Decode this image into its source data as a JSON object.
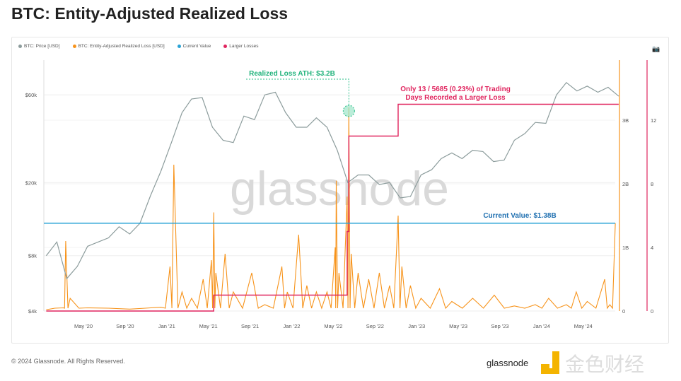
{
  "title": "BTC: Entity-Adjusted Realized Loss",
  "footer": "© 2024 Glassnode. All Rights Reserved.",
  "watermark": "glassnode",
  "logo_text": "金色财经",
  "camera_icon": "camera-icon",
  "colors": {
    "price": "#8c9c9c",
    "loss": "#f7931a",
    "current": "#2aa3d6",
    "larger": "#e0245e"
  },
  "chart_data": {
    "type": "line",
    "title": "BTC: Entity-Adjusted Realized Loss",
    "legend": [
      "BTC: Price [USD]",
      "BTC: Entity-Adjusted Realized Loss [USD]",
      "Current Value",
      "Larger Losses"
    ],
    "legend_placement": "top-left",
    "x_ticks": [
      "May '20",
      "Sep '20",
      "Jan '21",
      "May '21",
      "Sep '21",
      "Jan '22",
      "May '22",
      "Sep '22",
      "Jan '23",
      "May '23",
      "Sep '23",
      "Jan '24",
      "May '24"
    ],
    "y_left": {
      "scale": "log",
      "ticks": [
        "$4k",
        "$8k",
        "$20k",
        "$60k"
      ],
      "tick_values": [
        4000,
        8000,
        20000,
        60000
      ]
    },
    "y_right_loss": {
      "ticks": [
        "0",
        "1B",
        "2B",
        "3B"
      ],
      "tick_values": [
        0,
        1,
        2,
        3
      ],
      "unit": "billion USD"
    },
    "y_right_count": {
      "ticks": [
        "0",
        "4",
        "8",
        "12"
      ],
      "tick_values": [
        0,
        4,
        8,
        12
      ]
    },
    "x_range": [
      "2020-01",
      "2024-08"
    ],
    "price": [
      [
        "2020-01",
        8000
      ],
      [
        "2020-02",
        9500
      ],
      [
        "2020-03",
        6000
      ],
      [
        "2020-04",
        7000
      ],
      [
        "2020-05",
        9000
      ],
      [
        "2020-06",
        9500
      ],
      [
        "2020-07",
        10000
      ],
      [
        "2020-08",
        11500
      ],
      [
        "2020-09",
        10500
      ],
      [
        "2020-10",
        12000
      ],
      [
        "2020-11",
        17000
      ],
      [
        "2020-12",
        23000
      ],
      [
        "2021-01",
        33000
      ],
      [
        "2021-02",
        48000
      ],
      [
        "2021-03",
        57000
      ],
      [
        "2021-04",
        58000
      ],
      [
        "2021-05",
        40000
      ],
      [
        "2021-06",
        34000
      ],
      [
        "2021-07",
        33000
      ],
      [
        "2021-08",
        46000
      ],
      [
        "2021-09",
        44000
      ],
      [
        "2021-10",
        60000
      ],
      [
        "2021-11",
        62000
      ],
      [
        "2021-12",
        48000
      ],
      [
        "2022-01",
        40000
      ],
      [
        "2022-02",
        40000
      ],
      [
        "2022-03",
        45000
      ],
      [
        "2022-04",
        40000
      ],
      [
        "2022-05",
        30000
      ],
      [
        "2022-06",
        20000
      ],
      [
        "2022-07",
        22000
      ],
      [
        "2022-08",
        22000
      ],
      [
        "2022-09",
        19500
      ],
      [
        "2022-10",
        20000
      ],
      [
        "2022-11",
        16500
      ],
      [
        "2022-12",
        16800
      ],
      [
        "2023-01",
        22000
      ],
      [
        "2023-02",
        23500
      ],
      [
        "2023-03",
        27000
      ],
      [
        "2023-04",
        29000
      ],
      [
        "2023-05",
        27000
      ],
      [
        "2023-06",
        30000
      ],
      [
        "2023-07",
        29500
      ],
      [
        "2023-08",
        26000
      ],
      [
        "2023-09",
        26500
      ],
      [
        "2023-10",
        34000
      ],
      [
        "2023-11",
        37000
      ],
      [
        "2023-12",
        42500
      ],
      [
        "2024-01",
        42000
      ],
      [
        "2024-02",
        60000
      ],
      [
        "2024-03",
        70000
      ],
      [
        "2024-04",
        63000
      ],
      [
        "2024-05",
        67000
      ],
      [
        "2024-06",
        62000
      ],
      [
        "2024-07",
        66000
      ],
      [
        "2024-08",
        59000
      ]
    ],
    "loss": [
      [
        "2020-01",
        0.02
      ],
      [
        "2020-03-05",
        0.05
      ],
      [
        "2020-03-12",
        1.1
      ],
      [
        "2020-03-25",
        0.2
      ],
      [
        "2020-05",
        0.05
      ],
      [
        "2020-09",
        0.03
      ],
      [
        "2020-12",
        0.06
      ],
      [
        "2021-01-11",
        0.7
      ],
      [
        "2021-01-22",
        2.3
      ],
      [
        "2021-02",
        0.3
      ],
      [
        "2021-03",
        0.2
      ],
      [
        "2021-04-18",
        0.5
      ],
      [
        "2021-05-12",
        0.8
      ],
      [
        "2021-05-19",
        1.55
      ],
      [
        "2021-05-25",
        0.6
      ],
      [
        "2021-06-21",
        0.9
      ],
      [
        "2021-07",
        0.3
      ],
      [
        "2021-09-07",
        0.6
      ],
      [
        "2021-10",
        0.1
      ],
      [
        "2021-12-04",
        0.7
      ],
      [
        "2021-12-20",
        0.3
      ],
      [
        "2022-01-22",
        1.2
      ],
      [
        "2022-02",
        0.4
      ],
      [
        "2022-03",
        0.3
      ],
      [
        "2022-04",
        0.3
      ],
      [
        "2022-05-09",
        1.0
      ],
      [
        "2022-05-12",
        2.05
      ],
      [
        "2022-05-20",
        0.6
      ],
      [
        "2022-06-13",
        1.8
      ],
      [
        "2022-06-18",
        3.2
      ],
      [
        "2022-06-25",
        0.9
      ],
      [
        "2022-07",
        0.6
      ],
      [
        "2022-08",
        0.5
      ],
      [
        "2022-09",
        0.6
      ],
      [
        "2022-10",
        0.4
      ],
      [
        "2022-11-09",
        1.5
      ],
      [
        "2022-11-20",
        0.7
      ],
      [
        "2022-12",
        0.4
      ],
      [
        "2023-01",
        0.2
      ],
      [
        "2023-03-10",
        0.35
      ],
      [
        "2023-04",
        0.15
      ],
      [
        "2023-06",
        0.2
      ],
      [
        "2023-08-17",
        0.25
      ],
      [
        "2023-10",
        0.08
      ],
      [
        "2023-12",
        0.1
      ],
      [
        "2024-01-23",
        0.2
      ],
      [
        "2024-03",
        0.1
      ],
      [
        "2024-04-13",
        0.3
      ],
      [
        "2024-05",
        0.15
      ],
      [
        "2024-07-05",
        0.5
      ],
      [
        "2024-07-20",
        0.1
      ],
      [
        "2024-08-05",
        1.38
      ]
    ],
    "larger_losses": [
      [
        "2020-01",
        0
      ],
      [
        "2021-05-19",
        1
      ],
      [
        "2022-06-13",
        5
      ],
      [
        "2022-06-18",
        11
      ],
      [
        "2022-11-09",
        13
      ],
      [
        "2024-08",
        13
      ]
    ],
    "current_value": 1.38,
    "annotations": {
      "ath": "Realized Loss ATH: $3.2B",
      "larger": [
        "Only 13 / 5685 (0.23%) of Trading",
        "Days Recorded a Larger Loss"
      ],
      "current": "Current Value: $1.38B"
    }
  }
}
